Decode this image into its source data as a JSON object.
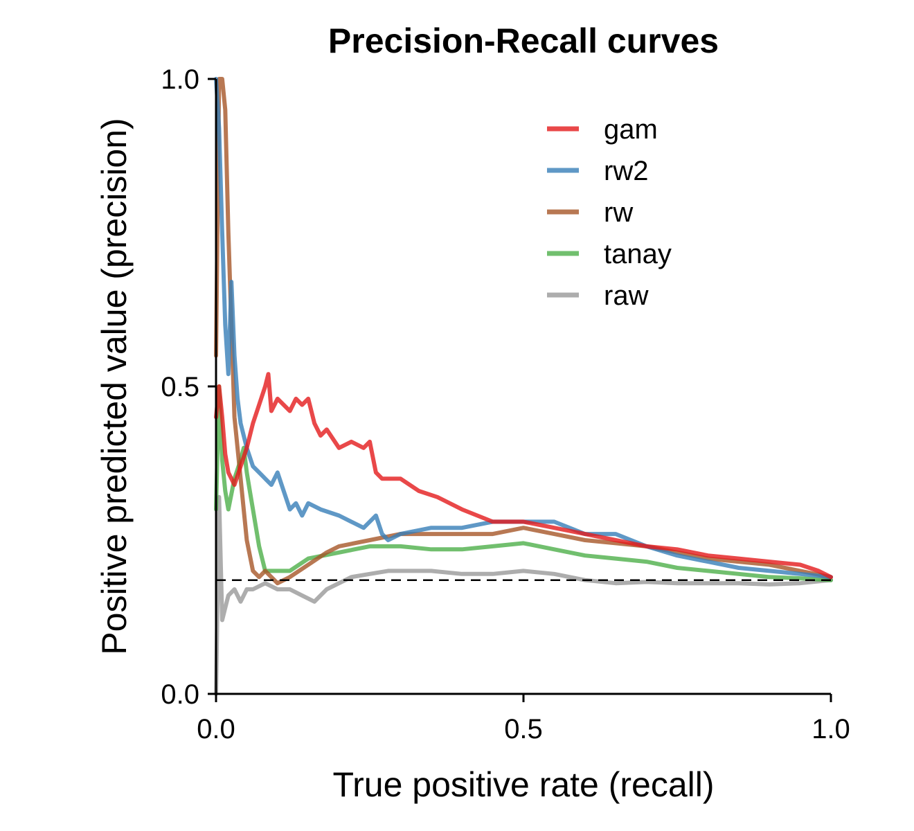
{
  "chart_data": {
    "type": "line",
    "title": "Precision-Recall curves",
    "xlabel": "True positive rate (recall)",
    "ylabel": "Positive predicted value (precision)",
    "xlim": [
      0,
      1
    ],
    "ylim": [
      0,
      1
    ],
    "xticks": [
      0.0,
      0.5,
      1.0
    ],
    "yticks": [
      0.0,
      0.5,
      1.0
    ],
    "xtick_labels": [
      "0.0",
      "0.5",
      "1.0"
    ],
    "ytick_labels": [
      "0.0",
      "0.5",
      "1.0"
    ],
    "grid": false,
    "legend_position": "top-right",
    "baseline": {
      "y": 0.185,
      "style": "dashed",
      "color": "#000000"
    },
    "series": [
      {
        "name": "gam",
        "color": "#e41a1c",
        "x": [
          0.0,
          0.005,
          0.01,
          0.015,
          0.02,
          0.03,
          0.04,
          0.05,
          0.06,
          0.07,
          0.08,
          0.085,
          0.09,
          0.1,
          0.11,
          0.12,
          0.13,
          0.14,
          0.15,
          0.16,
          0.17,
          0.18,
          0.2,
          0.22,
          0.24,
          0.25,
          0.26,
          0.27,
          0.3,
          0.33,
          0.36,
          0.4,
          0.45,
          0.5,
          0.55,
          0.6,
          0.65,
          0.7,
          0.75,
          0.8,
          0.85,
          0.9,
          0.95,
          0.98,
          1.0
        ],
        "y": [
          0.45,
          0.5,
          0.45,
          0.39,
          0.36,
          0.34,
          0.37,
          0.4,
          0.44,
          0.47,
          0.5,
          0.52,
          0.46,
          0.48,
          0.47,
          0.46,
          0.48,
          0.47,
          0.48,
          0.44,
          0.42,
          0.43,
          0.4,
          0.41,
          0.4,
          0.41,
          0.36,
          0.35,
          0.35,
          0.33,
          0.32,
          0.3,
          0.28,
          0.28,
          0.27,
          0.26,
          0.25,
          0.24,
          0.235,
          0.225,
          0.22,
          0.215,
          0.21,
          0.2,
          0.19
        ]
      },
      {
        "name": "rw2",
        "color": "#377eb8",
        "x": [
          0.0,
          0.005,
          0.01,
          0.015,
          0.02,
          0.025,
          0.03,
          0.035,
          0.04,
          0.05,
          0.06,
          0.07,
          0.08,
          0.09,
          0.1,
          0.11,
          0.12,
          0.13,
          0.14,
          0.15,
          0.17,
          0.2,
          0.22,
          0.24,
          0.26,
          0.27,
          0.28,
          0.3,
          0.35,
          0.4,
          0.45,
          0.5,
          0.55,
          0.6,
          0.65,
          0.7,
          0.75,
          0.8,
          0.85,
          0.9,
          0.95,
          1.0
        ],
        "y": [
          1.0,
          0.92,
          0.75,
          0.6,
          0.52,
          0.67,
          0.55,
          0.48,
          0.44,
          0.4,
          0.37,
          0.36,
          0.35,
          0.34,
          0.36,
          0.33,
          0.3,
          0.31,
          0.29,
          0.31,
          0.3,
          0.29,
          0.28,
          0.27,
          0.29,
          0.26,
          0.25,
          0.26,
          0.27,
          0.27,
          0.28,
          0.28,
          0.28,
          0.26,
          0.26,
          0.24,
          0.225,
          0.215,
          0.205,
          0.2,
          0.195,
          0.19
        ]
      },
      {
        "name": "rw",
        "color": "#a65628",
        "x": [
          0.0,
          0.005,
          0.01,
          0.015,
          0.02,
          0.025,
          0.03,
          0.04,
          0.05,
          0.06,
          0.07,
          0.08,
          0.1,
          0.12,
          0.15,
          0.18,
          0.2,
          0.25,
          0.3,
          0.35,
          0.4,
          0.45,
          0.5,
          0.55,
          0.6,
          0.65,
          0.7,
          0.75,
          0.8,
          0.85,
          0.9,
          0.95,
          1.0
        ],
        "y": [
          0.55,
          1.0,
          1.0,
          0.95,
          0.75,
          0.6,
          0.45,
          0.35,
          0.25,
          0.2,
          0.19,
          0.2,
          0.18,
          0.19,
          0.21,
          0.23,
          0.24,
          0.25,
          0.26,
          0.26,
          0.26,
          0.26,
          0.27,
          0.26,
          0.25,
          0.245,
          0.24,
          0.23,
          0.22,
          0.215,
          0.21,
          0.2,
          0.19
        ]
      },
      {
        "name": "tanay",
        "color": "#4daf4a",
        "x": [
          0.0,
          0.005,
          0.01,
          0.015,
          0.02,
          0.03,
          0.04,
          0.045,
          0.05,
          0.055,
          0.06,
          0.07,
          0.08,
          0.1,
          0.12,
          0.15,
          0.2,
          0.25,
          0.3,
          0.35,
          0.4,
          0.45,
          0.5,
          0.55,
          0.6,
          0.65,
          0.7,
          0.75,
          0.8,
          0.85,
          0.9,
          0.95,
          1.0
        ],
        "y": [
          0.3,
          0.5,
          0.38,
          0.33,
          0.3,
          0.35,
          0.38,
          0.4,
          0.36,
          0.33,
          0.3,
          0.24,
          0.2,
          0.2,
          0.2,
          0.22,
          0.23,
          0.24,
          0.24,
          0.235,
          0.235,
          0.24,
          0.245,
          0.235,
          0.225,
          0.22,
          0.215,
          0.205,
          0.2,
          0.195,
          0.19,
          0.188,
          0.185
        ]
      },
      {
        "name": "raw",
        "color": "#999999",
        "x": [
          0.0,
          0.005,
          0.01,
          0.015,
          0.02,
          0.03,
          0.04,
          0.05,
          0.06,
          0.08,
          0.1,
          0.12,
          0.14,
          0.16,
          0.18,
          0.2,
          0.22,
          0.25,
          0.28,
          0.3,
          0.35,
          0.4,
          0.45,
          0.5,
          0.55,
          0.6,
          0.65,
          0.7,
          0.75,
          0.8,
          0.85,
          0.9,
          0.95,
          1.0
        ],
        "y": [
          0.0,
          0.32,
          0.12,
          0.14,
          0.16,
          0.17,
          0.15,
          0.17,
          0.17,
          0.18,
          0.17,
          0.17,
          0.16,
          0.15,
          0.17,
          0.18,
          0.19,
          0.195,
          0.2,
          0.2,
          0.2,
          0.195,
          0.195,
          0.2,
          0.195,
          0.185,
          0.18,
          0.182,
          0.18,
          0.18,
          0.18,
          0.178,
          0.18,
          0.185
        ]
      }
    ]
  }
}
